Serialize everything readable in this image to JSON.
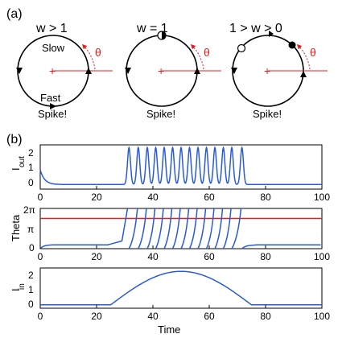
{
  "panel_a": {
    "label": "(a)",
    "circles": [
      {
        "title": "w > 1",
        "slow": "Slow",
        "fast": "Fast",
        "spike": "Spike!",
        "theta": "θ"
      },
      {
        "title": "w = 1",
        "spike": "Spike!",
        "theta": "θ"
      },
      {
        "title": "1 > w > 0",
        "spike": "Spike!",
        "theta": "θ"
      }
    ]
  },
  "panel_b": {
    "label": "(b)",
    "xlabel": "Time",
    "xticks": [
      "0",
      "20",
      "40",
      "60",
      "80",
      "100"
    ],
    "plots": [
      {
        "ylabel_main": "I",
        "ylabel_sub": "out",
        "yticks": [
          "2",
          "1",
          "0"
        ]
      },
      {
        "ylabel": "Theta",
        "yticks": [
          "2π",
          "π",
          "0"
        ]
      },
      {
        "ylabel_main": "I",
        "ylabel_sub": "in",
        "yticks": [
          "2",
          "1",
          "0"
        ]
      }
    ]
  },
  "colors": {
    "trace": "#2a5bd7",
    "threshold": "#e02020",
    "axis": "#000000"
  },
  "chart_data": [
    {
      "type": "line",
      "title": "",
      "xlabel": "",
      "ylabel": "Iout",
      "xlim": [
        0,
        100
      ],
      "ylim": [
        -0.2,
        2.2
      ],
      "spike_times": [
        31.5,
        34.8,
        38.0,
        41.0,
        44.0,
        47.0,
        50.0,
        53.0,
        56.0,
        59.0,
        62.0,
        65.0,
        68.0,
        71.6
      ],
      "baseline": 0,
      "peak": 2
    },
    {
      "type": "line",
      "title": "",
      "xlabel": "",
      "ylabel": "Theta",
      "xlim": [
        0,
        100
      ],
      "ylim": [
        0,
        6.2832
      ],
      "threshold": 4.71,
      "spike_times": [
        31.5,
        34.8,
        38.0,
        41.0,
        44.0,
        47.0,
        50.0,
        53.0,
        56.0,
        59.0,
        62.0,
        65.0,
        68.0,
        71.6
      ],
      "rest": 0.6
    },
    {
      "type": "line",
      "title": "",
      "xlabel": "Time",
      "ylabel": "Iin",
      "xlim": [
        0,
        100
      ],
      "ylim": [
        -0.2,
        2.2
      ],
      "x": [
        0,
        25,
        30,
        35,
        40,
        45,
        50,
        55,
        60,
        65,
        70,
        75,
        80,
        100
      ],
      "y": [
        0,
        0,
        0.38,
        0.89,
        1.38,
        1.75,
        1.97,
        2.0,
        1.84,
        1.5,
        1.0,
        0.45,
        0,
        0
      ]
    }
  ]
}
